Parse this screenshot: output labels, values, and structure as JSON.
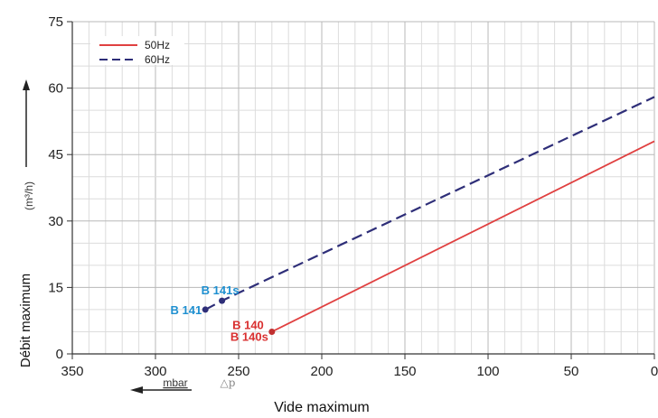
{
  "chart_data": {
    "type": "line",
    "xlabel": "Vide maximum",
    "x_unit": "mbar",
    "x_symbol": "△p",
    "ylabel": "Débit maximum",
    "y_unit": "(m³/h)",
    "xlim": [
      350,
      0
    ],
    "ylim": [
      0,
      75
    ],
    "x_ticks": [
      "350",
      "300",
      "250",
      "200",
      "150",
      "100",
      "50",
      "0"
    ],
    "y_ticks": [
      "0",
      "15",
      "30",
      "45",
      "60",
      "75"
    ],
    "grid": true,
    "legend_position": "top-left",
    "series": [
      {
        "name": "50Hz",
        "color": "#e04040",
        "style": "solid",
        "x": [
          230,
          0
        ],
        "y": [
          5,
          48
        ]
      },
      {
        "name": "60Hz",
        "color": "#2e2e78",
        "style": "dashed",
        "x": [
          270,
          260,
          0
        ],
        "y": [
          10,
          12,
          58
        ]
      }
    ],
    "points": [
      {
        "label": "B 141",
        "x": 270,
        "y": 10,
        "color": "#1e8fd0",
        "dot": "#2e2e78"
      },
      {
        "label": "B 141s",
        "x": 260,
        "y": 12,
        "color": "#1e8fd0",
        "dot": "#2e2e78"
      },
      {
        "label": "B 140",
        "x": 230,
        "y": 5,
        "color": "#d93030",
        "dot": "#c03030"
      },
      {
        "label": "B 140s",
        "x": 230,
        "y": 5,
        "color": "#d93030",
        "dot": "#c03030"
      }
    ]
  }
}
